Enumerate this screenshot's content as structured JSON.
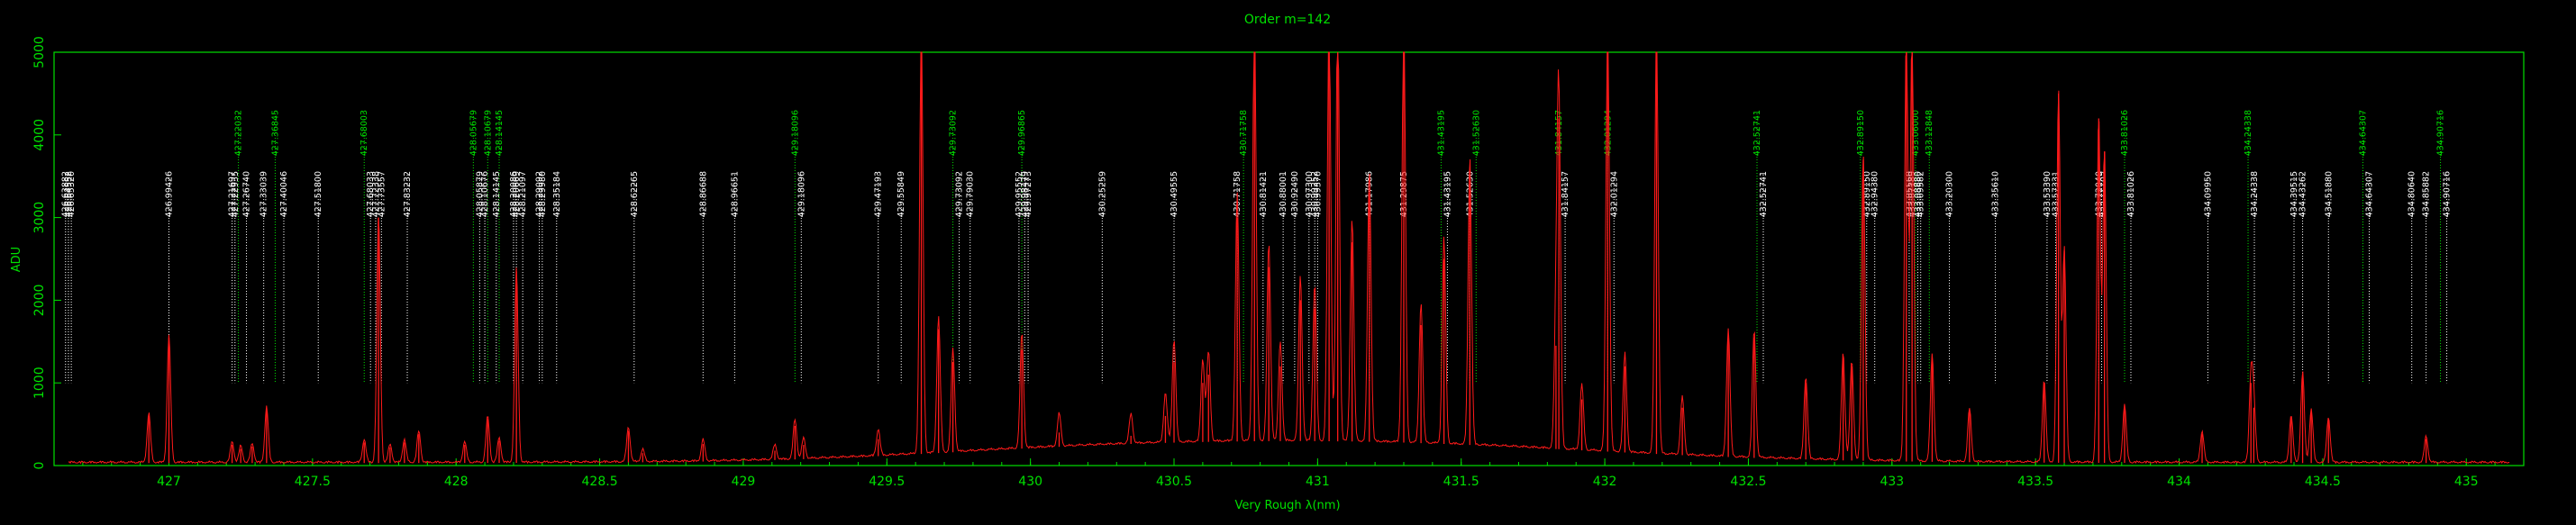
{
  "chart_data": {
    "type": "line",
    "title": "Order m=142",
    "xlabel": "Very Rough λ(nm)",
    "ylabel": "ADU",
    "xlim": [
      426.6,
      435.2
    ],
    "ylim": [
      0,
      5000
    ],
    "x_ticks": [
      427,
      427.5,
      428,
      428.5,
      429,
      429.5,
      430,
      430.5,
      431,
      431.5,
      432,
      432.5,
      433,
      433.5,
      434,
      434.5,
      435
    ],
    "x_tick_labels": [
      "427",
      "427.5",
      "428",
      "428.5",
      "429",
      "429.5",
      "430",
      "430.5",
      "431",
      "431.5",
      "432",
      "432.5",
      "433",
      "433.5",
      "434",
      "434.5",
      "435"
    ],
    "y_ticks": [
      0,
      1000,
      2000,
      3000,
      4000,
      5000
    ],
    "y_tick_labels": [
      "0",
      "1000",
      "2000",
      "3000",
      "4000",
      "5000"
    ],
    "grid": false,
    "colors": {
      "axis": "#00e000",
      "spectrum": "#ff1a1a",
      "line_label": "#ffffff",
      "line_label_alt": "#00e000"
    },
    "spectrum_peaks": [
      {
        "x": 426.93,
        "y": 600
      },
      {
        "x": 427.0,
        "y": 1550
      },
      {
        "x": 427.22,
        "y": 250
      },
      {
        "x": 427.25,
        "y": 200
      },
      {
        "x": 427.29,
        "y": 230
      },
      {
        "x": 427.34,
        "y": 680
      },
      {
        "x": 427.68,
        "y": 280
      },
      {
        "x": 427.73,
        "y": 3000
      },
      {
        "x": 427.77,
        "y": 220
      },
      {
        "x": 427.82,
        "y": 280
      },
      {
        "x": 427.87,
        "y": 380
      },
      {
        "x": 428.03,
        "y": 250
      },
      {
        "x": 428.11,
        "y": 560
      },
      {
        "x": 428.15,
        "y": 300
      },
      {
        "x": 428.21,
        "y": 2350
      },
      {
        "x": 428.6,
        "y": 420
      },
      {
        "x": 428.65,
        "y": 150
      },
      {
        "x": 428.86,
        "y": 260
      },
      {
        "x": 429.11,
        "y": 180
      },
      {
        "x": 429.18,
        "y": 480
      },
      {
        "x": 429.21,
        "y": 250
      },
      {
        "x": 429.47,
        "y": 320
      },
      {
        "x": 429.62,
        "y": 5200
      },
      {
        "x": 429.68,
        "y": 1650
      },
      {
        "x": 429.73,
        "y": 1250
      },
      {
        "x": 429.97,
        "y": 1400
      },
      {
        "x": 430.1,
        "y": 400
      },
      {
        "x": 430.35,
        "y": 360
      },
      {
        "x": 430.47,
        "y": 600
      },
      {
        "x": 430.5,
        "y": 1250
      },
      {
        "x": 430.6,
        "y": 1000
      },
      {
        "x": 430.62,
        "y": 1100
      },
      {
        "x": 430.72,
        "y": 3000
      },
      {
        "x": 430.78,
        "y": 5200
      },
      {
        "x": 430.83,
        "y": 2400
      },
      {
        "x": 430.87,
        "y": 1200
      },
      {
        "x": 430.94,
        "y": 2000
      },
      {
        "x": 430.99,
        "y": 1900
      },
      {
        "x": 431.04,
        "y": 5200
      },
      {
        "x": 431.07,
        "y": 5200
      },
      {
        "x": 431.12,
        "y": 2700
      },
      {
        "x": 431.18,
        "y": 3300
      },
      {
        "x": 431.3,
        "y": 5200
      },
      {
        "x": 431.36,
        "y": 1700
      },
      {
        "x": 431.44,
        "y": 2500
      },
      {
        "x": 431.53,
        "y": 3500
      },
      {
        "x": 431.83,
        "y": 1450
      },
      {
        "x": 431.84,
        "y": 4200
      },
      {
        "x": 431.92,
        "y": 800
      },
      {
        "x": 432.01,
        "y": 5200
      },
      {
        "x": 432.07,
        "y": 1200
      },
      {
        "x": 432.18,
        "y": 5200
      },
      {
        "x": 432.27,
        "y": 700
      },
      {
        "x": 432.43,
        "y": 1550
      },
      {
        "x": 432.52,
        "y": 1550
      },
      {
        "x": 432.7,
        "y": 1000
      },
      {
        "x": 432.83,
        "y": 1300
      },
      {
        "x": 432.86,
        "y": 1200
      },
      {
        "x": 432.9,
        "y": 3700
      },
      {
        "x": 433.05,
        "y": 5200
      },
      {
        "x": 433.07,
        "y": 5200
      },
      {
        "x": 433.14,
        "y": 1300
      },
      {
        "x": 433.27,
        "y": 650
      },
      {
        "x": 433.53,
        "y": 1000
      },
      {
        "x": 433.58,
        "y": 4500
      },
      {
        "x": 433.6,
        "y": 2600
      },
      {
        "x": 433.72,
        "y": 4200
      },
      {
        "x": 433.74,
        "y": 3800
      },
      {
        "x": 433.81,
        "y": 700
      },
      {
        "x": 434.08,
        "y": 380
      },
      {
        "x": 434.25,
        "y": 1000
      },
      {
        "x": 434.26,
        "y": 700
      },
      {
        "x": 434.39,
        "y": 580
      },
      {
        "x": 434.43,
        "y": 1100
      },
      {
        "x": 434.46,
        "y": 650
      },
      {
        "x": 434.52,
        "y": 550
      },
      {
        "x": 434.86,
        "y": 320
      }
    ],
    "line_ids": [
      {
        "x": 426.64,
        "label": "426.63882",
        "color": "white"
      },
      {
        "x": 426.65,
        "label": "426.64552",
        "color": "white"
      },
      {
        "x": 426.66,
        "label": "426.65320",
        "color": "white"
      },
      {
        "x": 427.0,
        "label": "426.99426",
        "color": "white"
      },
      {
        "x": 427.22,
        "label": "427.21697",
        "color": "white"
      },
      {
        "x": 427.22,
        "label": "427.22032",
        "color": "green"
      },
      {
        "x": 427.23,
        "label": "427.22935",
        "color": "white"
      },
      {
        "x": 427.27,
        "label": "427.26740",
        "color": "white"
      },
      {
        "x": 427.33,
        "label": "427.33039",
        "color": "white"
      },
      {
        "x": 427.37,
        "label": "427.36845",
        "color": "green"
      },
      {
        "x": 427.4,
        "label": "427.40046",
        "color": "white"
      },
      {
        "x": 427.52,
        "label": "427.51800",
        "color": "white"
      },
      {
        "x": 427.68,
        "label": "427.68003",
        "color": "green"
      },
      {
        "x": 427.68,
        "label": "427.68033",
        "color": "white"
      },
      {
        "x": 427.72,
        "label": "427.72338",
        "color": "white"
      },
      {
        "x": 427.74,
        "label": "427.73557",
        "color": "white"
      },
      {
        "x": 427.83,
        "label": "427.83232",
        "color": "white"
      },
      {
        "x": 428.06,
        "label": "428.05679",
        "color": "green"
      },
      {
        "x": 428.06,
        "label": "428.05879",
        "color": "white"
      },
      {
        "x": 428.1,
        "label": "428.10676",
        "color": "white"
      },
      {
        "x": 428.11,
        "label": "428.10679",
        "color": "green"
      },
      {
        "x": 428.14,
        "label": "428.14145",
        "color": "white"
      },
      {
        "x": 428.15,
        "label": "428.14145",
        "color": "green"
      },
      {
        "x": 428.2,
        "label": "428.20086",
        "color": "white"
      },
      {
        "x": 428.21,
        "label": "428.20669",
        "color": "white"
      },
      {
        "x": 428.21,
        "label": "428.21097",
        "color": "white"
      },
      {
        "x": 428.29,
        "label": "428.29092",
        "color": "white"
      },
      {
        "x": 428.3,
        "label": "428.29980",
        "color": "white"
      },
      {
        "x": 428.35,
        "label": "428.35184",
        "color": "white"
      },
      {
        "x": 428.62,
        "label": "428.62265",
        "color": "white"
      },
      {
        "x": 428.86,
        "label": "428.86688",
        "color": "white"
      },
      {
        "x": 428.97,
        "label": "428.96651",
        "color": "white"
      },
      {
        "x": 429.18,
        "label": "429.18096",
        "color": "green"
      },
      {
        "x": 429.18,
        "label": "429.18096",
        "color": "white"
      },
      {
        "x": 429.47,
        "label": "429.47193",
        "color": "white"
      },
      {
        "x": 429.55,
        "label": "429.55849",
        "color": "white"
      },
      {
        "x": 429.73,
        "label": "429.73092",
        "color": "green"
      },
      {
        "x": 429.73,
        "label": "429.73092",
        "color": "white"
      },
      {
        "x": 429.79,
        "label": "429.79030",
        "color": "white"
      },
      {
        "x": 429.96,
        "label": "429.95552",
        "color": "white"
      },
      {
        "x": 429.97,
        "label": "429.96865",
        "color": "green"
      },
      {
        "x": 429.97,
        "label": "429.97273",
        "color": "white"
      },
      {
        "x": 429.98,
        "label": "429.98479",
        "color": "white"
      },
      {
        "x": 430.25,
        "label": "430.25259",
        "color": "white"
      },
      {
        "x": 430.5,
        "label": "430.49555",
        "color": "white"
      },
      {
        "x": 430.72,
        "label": "430.71758",
        "color": "white"
      },
      {
        "x": 430.72,
        "label": "430.71758",
        "color": "green"
      },
      {
        "x": 430.81,
        "label": "430.81421",
        "color": "white"
      },
      {
        "x": 430.88,
        "label": "430.88001",
        "color": "white"
      },
      {
        "x": 430.92,
        "label": "430.92490",
        "color": "white"
      },
      {
        "x": 430.97,
        "label": "430.97300",
        "color": "white"
      },
      {
        "x": 430.99,
        "label": "430.99252",
        "color": "white"
      },
      {
        "x": 431.0,
        "label": "430.99370",
        "color": "white"
      },
      {
        "x": 431.18,
        "label": "431.17986",
        "color": "white"
      },
      {
        "x": 431.3,
        "label": "431.29875",
        "color": "white"
      },
      {
        "x": 431.43,
        "label": "431.43195",
        "color": "green"
      },
      {
        "x": 431.43,
        "label": "431.43195",
        "color": "white"
      },
      {
        "x": 431.53,
        "label": "431.52630",
        "color": "white"
      },
      {
        "x": 431.53,
        "label": "431.52630",
        "color": "green"
      },
      {
        "x": 431.84,
        "label": "431.84157",
        "color": "green"
      },
      {
        "x": 431.84,
        "label": "431.84157",
        "color": "white"
      },
      {
        "x": 432.01,
        "label": "432.01294",
        "color": "green"
      },
      {
        "x": 432.01,
        "label": "432.01294",
        "color": "white"
      },
      {
        "x": 432.53,
        "label": "432.52741",
        "color": "green"
      },
      {
        "x": 432.53,
        "label": "432.52741",
        "color": "white"
      },
      {
        "x": 432.89,
        "label": "432.89150",
        "color": "green"
      },
      {
        "x": 432.89,
        "label": "432.89150",
        "color": "white"
      },
      {
        "x": 432.94,
        "label": "432.94380",
        "color": "white"
      },
      {
        "x": 433.06,
        "label": "433.05560",
        "color": "white"
      },
      {
        "x": 433.06,
        "label": "433.06000",
        "color": "green"
      },
      {
        "x": 433.07,
        "label": "433.07189",
        "color": "white"
      },
      {
        "x": 433.09,
        "label": "433.08880",
        "color": "white"
      },
      {
        "x": 433.1,
        "label": "433.09582",
        "color": "white"
      },
      {
        "x": 433.13,
        "label": "433.12848",
        "color": "green"
      },
      {
        "x": 433.2,
        "label": "433.20300",
        "color": "white"
      },
      {
        "x": 433.36,
        "label": "433.35610",
        "color": "white"
      },
      {
        "x": 433.54,
        "label": "433.53390",
        "color": "white"
      },
      {
        "x": 433.57,
        "label": "433.57331",
        "color": "white"
      },
      {
        "x": 433.72,
        "label": "433.72040",
        "color": "white"
      },
      {
        "x": 433.73,
        "label": "433.72789",
        "color": "white"
      },
      {
        "x": 433.81,
        "label": "433.81026",
        "color": "green"
      },
      {
        "x": 433.81,
        "label": "433.81026",
        "color": "white"
      },
      {
        "x": 434.1,
        "label": "434.09950",
        "color": "white"
      },
      {
        "x": 434.24,
        "label": "434.24338",
        "color": "green"
      },
      {
        "x": 434.24,
        "label": "434.24338",
        "color": "white"
      },
      {
        "x": 434.4,
        "label": "434.39515",
        "color": "white"
      },
      {
        "x": 434.43,
        "label": "434.43262",
        "color": "white"
      },
      {
        "x": 434.52,
        "label": "434.51880",
        "color": "white"
      },
      {
        "x": 434.64,
        "label": "434.64307",
        "color": "green"
      },
      {
        "x": 434.64,
        "label": "434.64307",
        "color": "white"
      },
      {
        "x": 434.81,
        "label": "434.80640",
        "color": "white"
      },
      {
        "x": 434.86,
        "label": "434.85882",
        "color": "white"
      },
      {
        "x": 434.91,
        "label": "434.90716",
        "color": "green"
      },
      {
        "x": 434.91,
        "label": "434.90716",
        "color": "white"
      }
    ]
  }
}
